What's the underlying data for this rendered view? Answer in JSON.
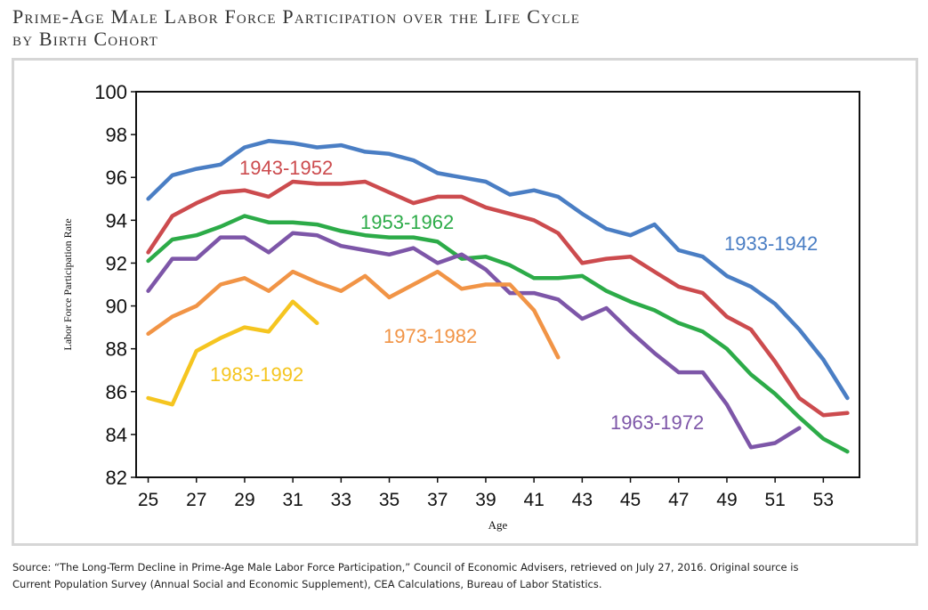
{
  "title": {
    "line1": "Prime-Age Male Labor Force Participation over the Life Cycle",
    "line2": "by Birth Cohort"
  },
  "source": {
    "line1": "Source: “The Long-Term Decline in Prime-Age Male Labor Force Participation,” Council of Economic Advisers, retrieved on July 27, 2016. Original source is",
    "line2": "Current Population Survey (Annual Social and Economic Supplement), CEA Calculations, Bureau of Labor Statistics."
  },
  "chart_data": {
    "type": "line",
    "title": "",
    "xlabel": "Age",
    "ylabel": "Labor Force Participation Rate",
    "xlim": [
      24.5,
      54.5
    ],
    "ylim": [
      82,
      100
    ],
    "xticks": [
      25,
      27,
      29,
      31,
      33,
      35,
      37,
      39,
      41,
      43,
      45,
      47,
      49,
      51,
      53
    ],
    "yticks": [
      82,
      84,
      86,
      88,
      90,
      92,
      94,
      96,
      98,
      100
    ],
    "grid": false,
    "legend": "inline labels",
    "series": [
      {
        "name": "1933-1942",
        "color": "#4a7ec4",
        "x": [
          25,
          26,
          27,
          28,
          29,
          30,
          31,
          32,
          33,
          34,
          35,
          36,
          37,
          38,
          39,
          40,
          41,
          42,
          43,
          44,
          45,
          46,
          47,
          48,
          49,
          50,
          51,
          52,
          53,
          54
        ],
        "y": [
          95.0,
          96.1,
          96.4,
          96.6,
          97.4,
          97.7,
          97.6,
          97.4,
          97.5,
          97.2,
          97.1,
          96.8,
          96.2,
          96.0,
          95.8,
          95.2,
          95.4,
          95.1,
          94.3,
          93.6,
          93.3,
          93.8,
          92.6,
          92.3,
          91.4,
          90.9,
          90.1,
          88.9,
          87.5,
          85.7
        ]
      },
      {
        "name": "1943-1952",
        "color": "#cc4b4e",
        "x": [
          25,
          26,
          27,
          28,
          29,
          30,
          31,
          32,
          33,
          34,
          35,
          36,
          37,
          38,
          39,
          40,
          41,
          42,
          43,
          44,
          45,
          46,
          47,
          48,
          49,
          50,
          51,
          52,
          53,
          54
        ],
        "y": [
          92.5,
          94.2,
          94.8,
          95.3,
          95.4,
          95.1,
          95.8,
          95.7,
          95.7,
          95.8,
          95.3,
          94.8,
          95.1,
          95.1,
          94.6,
          94.3,
          94.0,
          93.4,
          92.0,
          92.2,
          92.3,
          91.6,
          90.9,
          90.6,
          89.5,
          88.9,
          87.4,
          85.7,
          84.9,
          85.0
        ]
      },
      {
        "name": "1953-1962",
        "color": "#2cab48",
        "x": [
          25,
          26,
          27,
          28,
          29,
          30,
          31,
          32,
          33,
          34,
          35,
          36,
          37,
          38,
          39,
          40,
          41,
          42,
          43,
          44,
          45,
          46,
          47,
          48,
          49,
          50,
          51,
          52,
          53,
          54
        ],
        "y": [
          92.1,
          93.1,
          93.3,
          93.7,
          94.2,
          93.9,
          93.9,
          93.8,
          93.5,
          93.3,
          93.2,
          93.2,
          93.0,
          92.2,
          92.3,
          91.9,
          91.3,
          91.3,
          91.4,
          90.7,
          90.2,
          89.8,
          89.2,
          88.8,
          88.0,
          86.8,
          85.9,
          84.8,
          83.8,
          83.2
        ]
      },
      {
        "name": "1963-1972",
        "color": "#7d56a8",
        "x": [
          25,
          26,
          27,
          28,
          29,
          30,
          31,
          32,
          33,
          34,
          35,
          36,
          37,
          38,
          39,
          40,
          41,
          42,
          43,
          44,
          45,
          46,
          47,
          48,
          49,
          50,
          51,
          52
        ],
        "y": [
          90.7,
          92.2,
          92.2,
          93.2,
          93.2,
          92.5,
          93.4,
          93.3,
          92.8,
          92.6,
          92.4,
          92.7,
          92.0,
          92.4,
          91.7,
          90.6,
          90.6,
          90.3,
          89.4,
          89.9,
          88.8,
          87.8,
          86.9,
          86.9,
          85.4,
          83.4,
          83.6,
          84.3
        ]
      },
      {
        "name": "1973-1982",
        "color": "#f19446",
        "x": [
          25,
          26,
          27,
          28,
          29,
          30,
          31,
          32,
          33,
          34,
          35,
          36,
          37,
          38,
          39,
          40,
          41,
          42
        ],
        "y": [
          88.7,
          89.5,
          90.0,
          91.0,
          91.3,
          90.7,
          91.6,
          91.1,
          90.7,
          91.4,
          90.4,
          91.0,
          91.6,
          90.8,
          91.0,
          91.0,
          89.8,
          87.6
        ]
      },
      {
        "name": "1983-1992",
        "color": "#f5c520",
        "x": [
          25,
          26,
          27,
          28,
          29,
          30,
          31,
          32
        ],
        "y": [
          85.7,
          85.4,
          87.9,
          88.5,
          89.0,
          88.8,
          90.2,
          89.2
        ]
      }
    ]
  }
}
